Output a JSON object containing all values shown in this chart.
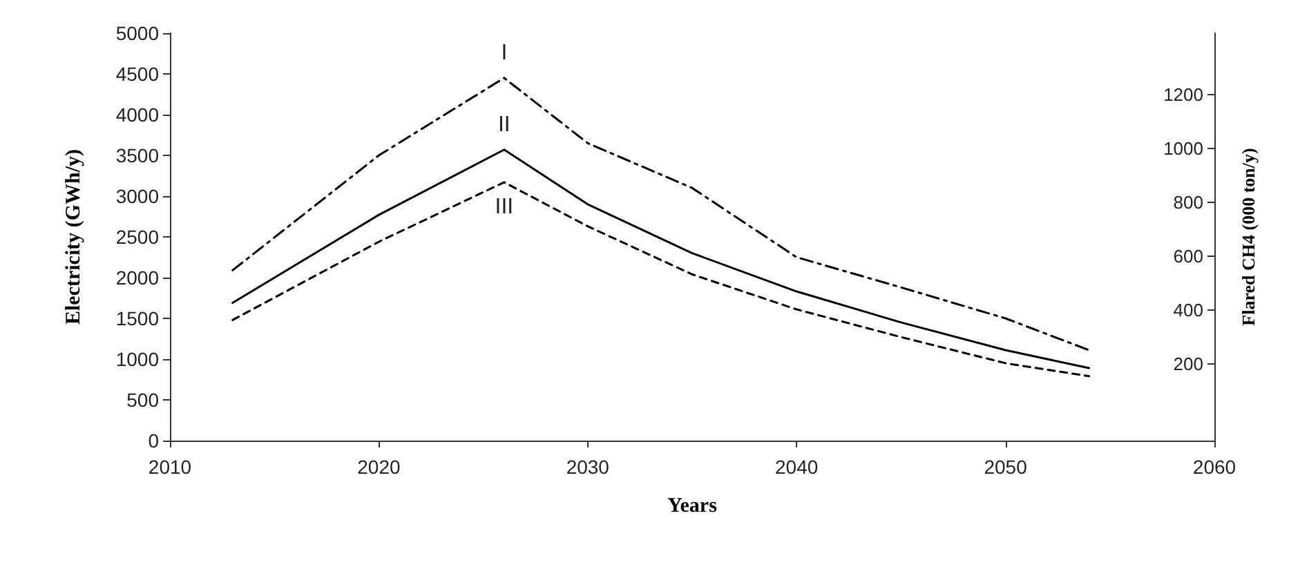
{
  "chart_data": {
    "type": "line",
    "xlabel": "Years",
    "ylabel": "Electricity (GWh/y)",
    "y2label": "Flared CH4 (000 ton/y)",
    "x": [
      2013,
      2020,
      2026,
      2030,
      2035,
      2040,
      2045,
      2050,
      2054
    ],
    "series": [
      {
        "name": "I",
        "color": "#000000",
        "line_style": "dashed",
        "values": [
          2090,
          3500,
          4450,
          3650,
          3100,
          2250,
          1880,
          1500,
          1110
        ]
      },
      {
        "name": "II",
        "color": "#000000",
        "line_style": "solid",
        "values": [
          1690,
          2770,
          3570,
          2900,
          2300,
          1830,
          1450,
          1110,
          890
        ]
      },
      {
        "name": "III",
        "color": "#000000",
        "line_style": "dotted",
        "values": [
          1480,
          2440,
          3170,
          2630,
          2040,
          1610,
          1270,
          950,
          790
        ]
      }
    ],
    "xlim": [
      2010,
      2060
    ],
    "xticks": [
      2010,
      2020,
      2030,
      2040,
      2050,
      2060
    ],
    "ylim": [
      0,
      5000
    ],
    "yticks": [
      0,
      500,
      1000,
      1500,
      2000,
      2500,
      3000,
      3500,
      4000,
      4500,
      5000
    ],
    "y2lim": [
      -86,
      1428
    ],
    "y2ticks": [
      200,
      400,
      600,
      800,
      1000,
      1200
    ],
    "grid": false,
    "legend": false,
    "marker": "none"
  }
}
